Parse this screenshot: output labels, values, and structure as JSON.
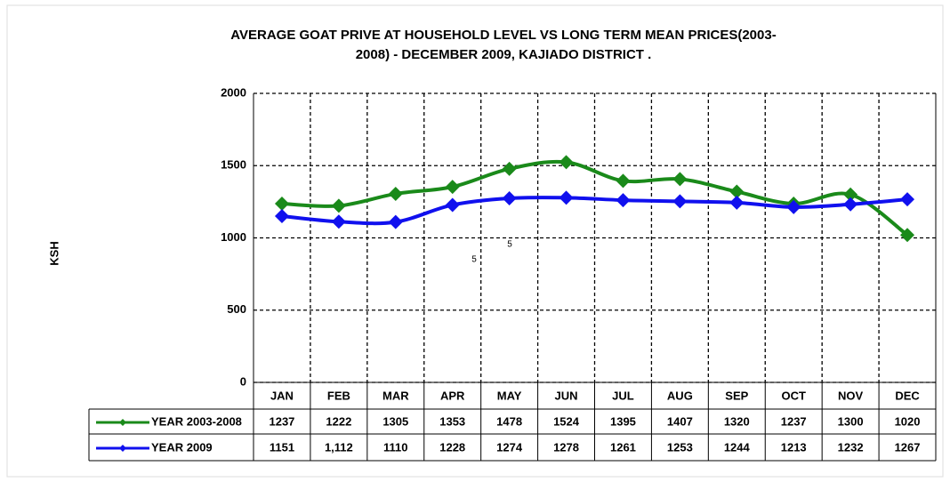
{
  "chart_data": {
    "type": "line",
    "title": "AVERAGE GOAT PRIVE AT HOUSEHOLD LEVEL VS LONG TERM MEAN PRICES(2003-2008) - DECEMBER 2009, KAJIADO DISTRICT .",
    "ylabel": "KSH",
    "categories": [
      "JAN",
      "FEB",
      "MAR",
      "APR",
      "MAY",
      "JUN",
      "JUL",
      "AUG",
      "SEP",
      "OCT",
      "NOV",
      "DEC"
    ],
    "series": [
      {
        "name": "YEAR 2003-2008",
        "color": "#1a8a1a",
        "values": [
          1237,
          1222,
          1305,
          1353,
          1478,
          1524,
          1395,
          1407,
          1320,
          1237,
          1300,
          1020
        ]
      },
      {
        "name": "YEAR 2009",
        "color": "#1010ee",
        "values": [
          1151,
          1112,
          1110,
          1228,
          1274,
          1278,
          1261,
          1253,
          1244,
          1213,
          1232,
          1267
        ],
        "value_labels": [
          "1151",
          "1,112",
          "1110",
          "1228",
          "1274",
          "1278",
          "1261",
          "1253",
          "1244",
          "1213",
          "1232",
          "1267"
        ]
      }
    ],
    "annotations": [
      "5",
      "5"
    ],
    "ylim": [
      0,
      2000
    ],
    "yticks": [
      0,
      500,
      1000,
      1500,
      2000
    ],
    "grid": true,
    "smooth": true
  }
}
